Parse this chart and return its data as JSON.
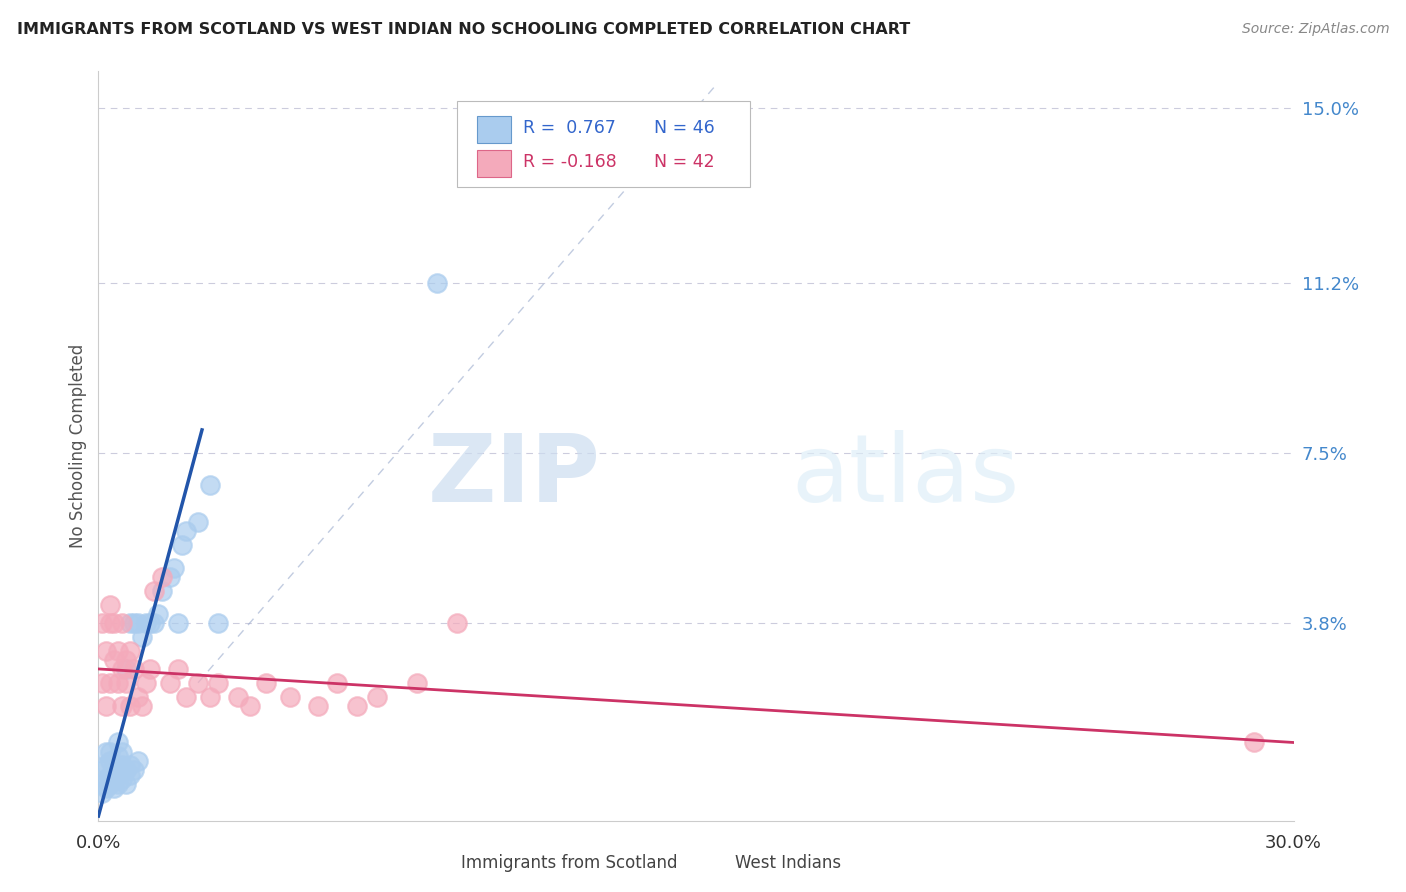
{
  "title": "IMMIGRANTS FROM SCOTLAND VS WEST INDIAN NO SCHOOLING COMPLETED CORRELATION CHART",
  "source": "Source: ZipAtlas.com",
  "ylabel": "No Schooling Completed",
  "ytick_vals": [
    0.038,
    0.075,
    0.112,
    0.15
  ],
  "ytick_labels": [
    "3.8%",
    "7.5%",
    "11.2%",
    "15.0%"
  ],
  "xlim": [
    0.0,
    0.3
  ],
  "ylim": [
    -0.005,
    0.158
  ],
  "legend_r1": "R =  0.767",
  "legend_n1": "N = 46",
  "legend_r2": "R = -0.168",
  "legend_n2": "N = 42",
  "color_blue": "#aaccee",
  "color_pink": "#f4aabb",
  "color_blue_line": "#2255aa",
  "color_pink_line": "#cc3366",
  "watermark_zip": "ZIP",
  "watermark_atlas": "atlas",
  "scotland_x": [
    0.001,
    0.001,
    0.001,
    0.002,
    0.002,
    0.002,
    0.002,
    0.003,
    0.003,
    0.003,
    0.003,
    0.004,
    0.004,
    0.004,
    0.005,
    0.005,
    0.005,
    0.005,
    0.006,
    0.006,
    0.006,
    0.007,
    0.007,
    0.007,
    0.008,
    0.008,
    0.008,
    0.009,
    0.009,
    0.01,
    0.01,
    0.011,
    0.012,
    0.013,
    0.014,
    0.015,
    0.016,
    0.018,
    0.019,
    0.02,
    0.021,
    0.022,
    0.025,
    0.028,
    0.085,
    0.03
  ],
  "scotland_y": [
    0.001,
    0.003,
    0.006,
    0.002,
    0.004,
    0.007,
    0.01,
    0.003,
    0.005,
    0.008,
    0.01,
    0.002,
    0.005,
    0.007,
    0.003,
    0.006,
    0.009,
    0.012,
    0.004,
    0.007,
    0.01,
    0.003,
    0.006,
    0.028,
    0.005,
    0.007,
    0.038,
    0.006,
    0.038,
    0.008,
    0.038,
    0.035,
    0.038,
    0.038,
    0.038,
    0.04,
    0.045,
    0.048,
    0.05,
    0.038,
    0.055,
    0.058,
    0.06,
    0.068,
    0.112,
    0.038
  ],
  "westindian_x": [
    0.001,
    0.001,
    0.002,
    0.002,
    0.003,
    0.003,
    0.003,
    0.004,
    0.004,
    0.005,
    0.005,
    0.006,
    0.006,
    0.006,
    0.007,
    0.007,
    0.008,
    0.008,
    0.009,
    0.01,
    0.011,
    0.012,
    0.013,
    0.014,
    0.016,
    0.018,
    0.02,
    0.022,
    0.025,
    0.028,
    0.03,
    0.035,
    0.038,
    0.042,
    0.048,
    0.055,
    0.06,
    0.065,
    0.07,
    0.08,
    0.09,
    0.29
  ],
  "westindian_y": [
    0.025,
    0.038,
    0.02,
    0.032,
    0.025,
    0.038,
    0.042,
    0.03,
    0.038,
    0.025,
    0.032,
    0.02,
    0.028,
    0.038,
    0.025,
    0.03,
    0.02,
    0.032,
    0.028,
    0.022,
    0.02,
    0.025,
    0.028,
    0.045,
    0.048,
    0.025,
    0.028,
    0.022,
    0.025,
    0.022,
    0.025,
    0.022,
    0.02,
    0.025,
    0.022,
    0.02,
    0.025,
    0.02,
    0.022,
    0.025,
    0.038,
    0.012
  ],
  "blue_line_x": [
    0.0,
    0.026
  ],
  "blue_line_y": [
    -0.004,
    0.08
  ],
  "pink_line_x": [
    0.0,
    0.3
  ],
  "pink_line_y": [
    0.028,
    0.012
  ],
  "diag_line_x": [
    0.025,
    0.155
  ],
  "diag_line_y": [
    0.025,
    0.155
  ]
}
